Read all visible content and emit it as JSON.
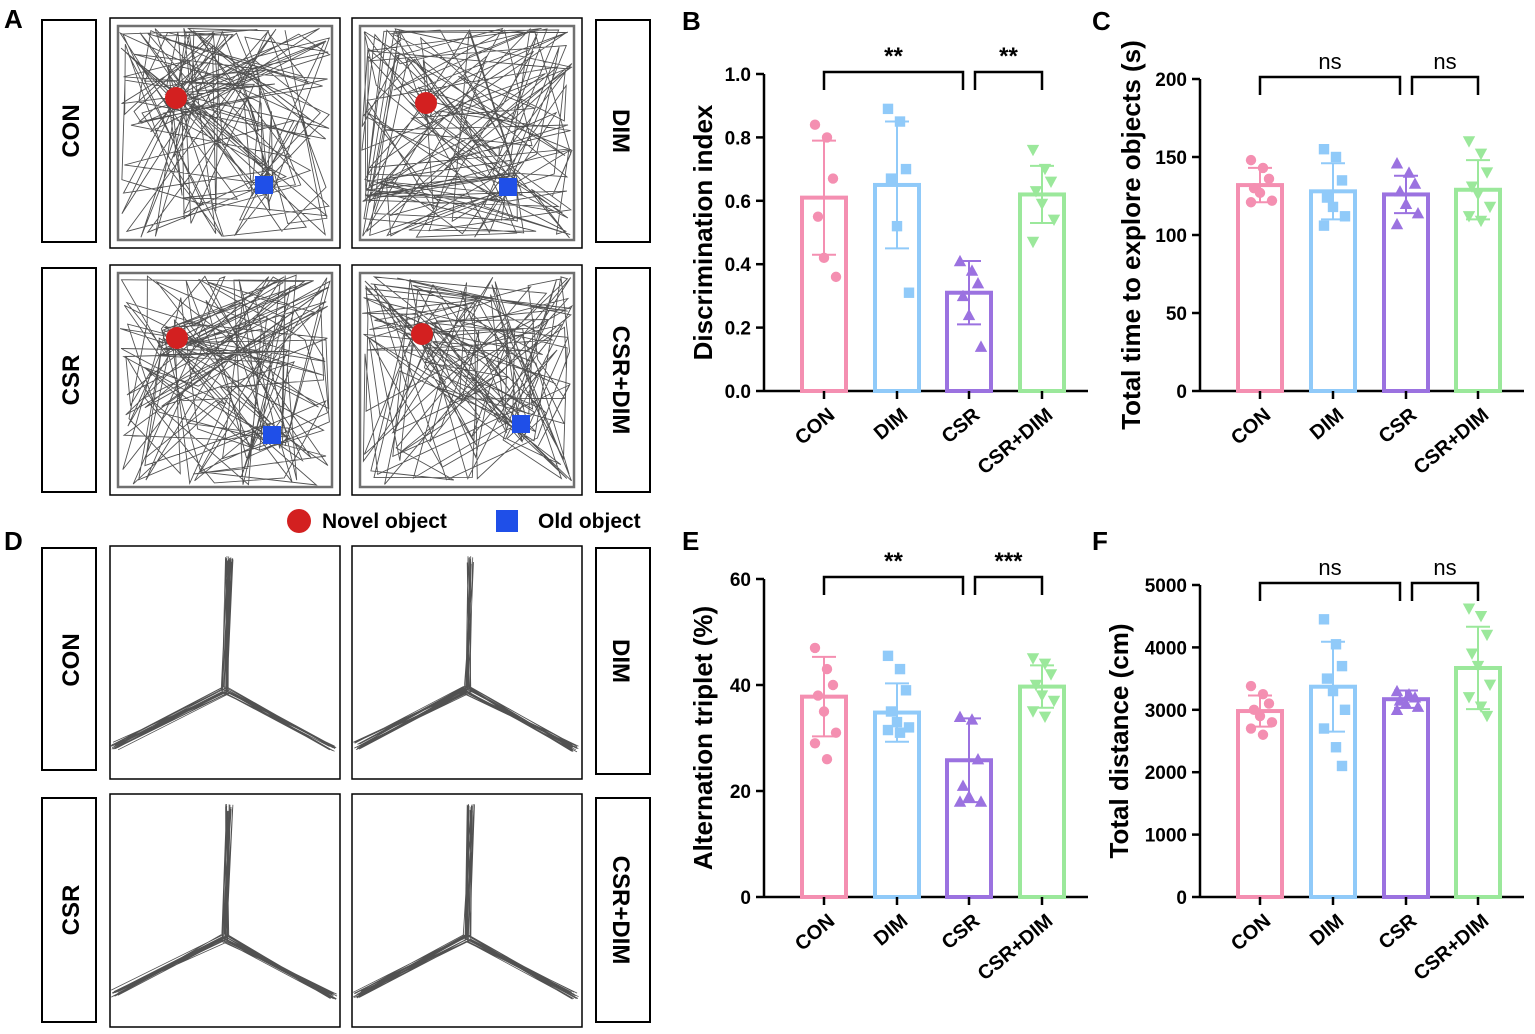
{
  "panel_letters": {
    "A": "A",
    "B": "B",
    "C": "C",
    "D": "D",
    "E": "E",
    "F": "F"
  },
  "colors": {
    "CON": "#f48fb1",
    "DIM": "#90caf9",
    "CSR": "#9b72e0",
    "CSR+DIM": "#9be89b",
    "novel": "#d32020",
    "old": "#1f4fe8",
    "track": "#333333"
  },
  "groups": [
    "CON",
    "DIM",
    "CSR",
    "CSR+DIM"
  ],
  "legend": {
    "novel": "Novel object",
    "old": "Old object"
  },
  "panelA": {
    "labels": {
      "tl": "CON",
      "tr": "DIM",
      "bl": "CSR",
      "br": "CSR+DIM"
    }
  },
  "panelD": {
    "labels": {
      "tl": "CON",
      "tr": "DIM",
      "bl": "CSR",
      "br": "CSR+DIM"
    }
  },
  "chart_data": [
    {
      "id": "B",
      "type": "bar",
      "title": "",
      "xlabel": "",
      "ylabel": "Discrimination index",
      "categories": [
        "CON",
        "DIM",
        "CSR",
        "CSR+DIM"
      ],
      "ylim": [
        0,
        1.0
      ],
      "yticks": [
        0.0,
        0.2,
        0.4,
        0.6,
        0.8,
        1.0
      ],
      "tick_labels": [
        "0.0",
        "0.2",
        "0.4",
        "0.6",
        "0.8",
        "1.0"
      ],
      "values": [
        0.61,
        0.65,
        0.31,
        0.62
      ],
      "sd": [
        0.18,
        0.2,
        0.1,
        0.09
      ],
      "points": [
        [
          0.84,
          0.8,
          0.67,
          0.55,
          0.42,
          0.36
        ],
        [
          0.89,
          0.85,
          0.7,
          0.67,
          0.52,
          0.31
        ],
        [
          0.41,
          0.38,
          0.34,
          0.3,
          0.24,
          0.14
        ],
        [
          0.76,
          0.7,
          0.66,
          0.63,
          0.59,
          0.54,
          0.47
        ]
      ],
      "markers": [
        "circle",
        "square",
        "triangle",
        "triangle-down"
      ],
      "significance": [
        {
          "from": 0,
          "to": 2,
          "label": "**"
        },
        {
          "from": 2,
          "to": 3,
          "label": "**"
        }
      ]
    },
    {
      "id": "C",
      "type": "bar",
      "title": "",
      "xlabel": "",
      "ylabel": "Total time to explore objects (s)",
      "categories": [
        "CON",
        "DIM",
        "CSR",
        "CSR+DIM"
      ],
      "ylim": [
        0,
        200
      ],
      "yticks": [
        0,
        50,
        100,
        150,
        200
      ],
      "tick_labels": [
        "0",
        "50",
        "100",
        "150",
        "200"
      ],
      "values": [
        132,
        128,
        126,
        129
      ],
      "sd": [
        11,
        18,
        12,
        19
      ],
      "points": [
        [
          148,
          143,
          136,
          130,
          127,
          122,
          121
        ],
        [
          155,
          150,
          135,
          124,
          118,
          112,
          106
        ],
        [
          146,
          140,
          133,
          128,
          120,
          114,
          107
        ],
        [
          160,
          152,
          140,
          131,
          126,
          118,
          112,
          109
        ]
      ],
      "markers": [
        "circle",
        "square",
        "triangle",
        "triangle-down"
      ],
      "significance": [
        {
          "from": 0,
          "to": 2,
          "label": "ns"
        },
        {
          "from": 2,
          "to": 3,
          "label": "ns"
        }
      ]
    },
    {
      "id": "E",
      "type": "bar",
      "title": "",
      "xlabel": "",
      "ylabel": "Alternation triplet (%)",
      "categories": [
        "CON",
        "DIM",
        "CSR",
        "CSR+DIM"
      ],
      "ylim": [
        0,
        60
      ],
      "yticks": [
        0,
        20,
        40,
        60
      ],
      "tick_labels": [
        "0",
        "20",
        "40",
        "60"
      ],
      "values": [
        37.8,
        34.8,
        25.8,
        39.7
      ],
      "sd": [
        7.5,
        5.5,
        7.9,
        4.0
      ],
      "points": [
        [
          47,
          43,
          40,
          38,
          35,
          31,
          29,
          26
        ],
        [
          45.5,
          43,
          39,
          35,
          33,
          32,
          31.5,
          31
        ],
        [
          34,
          33.5,
          26,
          21,
          19,
          18,
          18
        ],
        [
          45,
          44,
          42,
          40,
          38,
          37,
          35,
          34
        ]
      ],
      "markers": [
        "circle",
        "square",
        "triangle",
        "triangle-down"
      ],
      "significance": [
        {
          "from": 0,
          "to": 2,
          "label": "**"
        },
        {
          "from": 2,
          "to": 3,
          "label": "***"
        }
      ]
    },
    {
      "id": "F",
      "type": "bar",
      "title": "",
      "xlabel": "",
      "ylabel": "Total distance (cm)",
      "categories": [
        "CON",
        "DIM",
        "CSR",
        "CSR+DIM"
      ],
      "ylim": [
        0,
        5000
      ],
      "yticks": [
        0,
        1000,
        2000,
        3000,
        4000,
        5000
      ],
      "tick_labels": [
        "0",
        "1000",
        "2000",
        "3000",
        "4000",
        "5000"
      ],
      "values": [
        2980,
        3370,
        3170,
        3670
      ],
      "sd": [
        250,
        720,
        140,
        660
      ],
      "points": [
        [
          3380,
          3250,
          3100,
          3000,
          2900,
          2800,
          2700,
          2600
        ],
        [
          4450,
          4050,
          3700,
          3500,
          3300,
          3000,
          2700,
          2400,
          2100
        ],
        [
          3300,
          3250,
          3200,
          3150,
          3100,
          3050,
          3000
        ],
        [
          4620,
          4500,
          4200,
          3900,
          3700,
          3400,
          3200,
          3050,
          2900
        ]
      ],
      "markers": [
        "circle",
        "square",
        "triangle",
        "triangle-down"
      ],
      "significance": [
        {
          "from": 0,
          "to": 2,
          "label": "ns"
        },
        {
          "from": 2,
          "to": 3,
          "label": "ns"
        }
      ]
    }
  ]
}
